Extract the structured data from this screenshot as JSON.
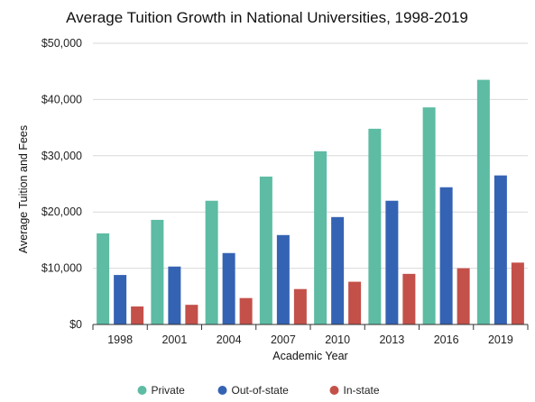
{
  "chart_data": {
    "type": "bar",
    "title": "Average Tuition Growth in National Universities, 1998-2019",
    "xlabel": "Academic Year",
    "ylabel": "Average Tuition and Fees",
    "categories": [
      "1998",
      "2001",
      "2004",
      "2007",
      "2010",
      "2013",
      "2016",
      "2019"
    ],
    "ylim": [
      0,
      50000
    ],
    "yticks": [
      0,
      10000,
      20000,
      30000,
      40000,
      50000
    ],
    "ytick_labels": [
      "$0",
      "$10,000",
      "$20,000",
      "$30,000",
      "$40,000",
      "$50,000"
    ],
    "grid": true,
    "legend_position": "bottom",
    "series": [
      {
        "name": "Private",
        "color": "#5dbca3",
        "values": [
          16200,
          18600,
          22000,
          26300,
          30800,
          34800,
          38600,
          43500
        ]
      },
      {
        "name": "Out-of-state",
        "color": "#3563b4",
        "values": [
          8800,
          10300,
          12700,
          15900,
          19100,
          22000,
          24400,
          26500
        ]
      },
      {
        "name": "In-state",
        "color": "#c4504a",
        "values": [
          3200,
          3500,
          4700,
          6300,
          7600,
          9000,
          10000,
          11000
        ]
      }
    ]
  }
}
